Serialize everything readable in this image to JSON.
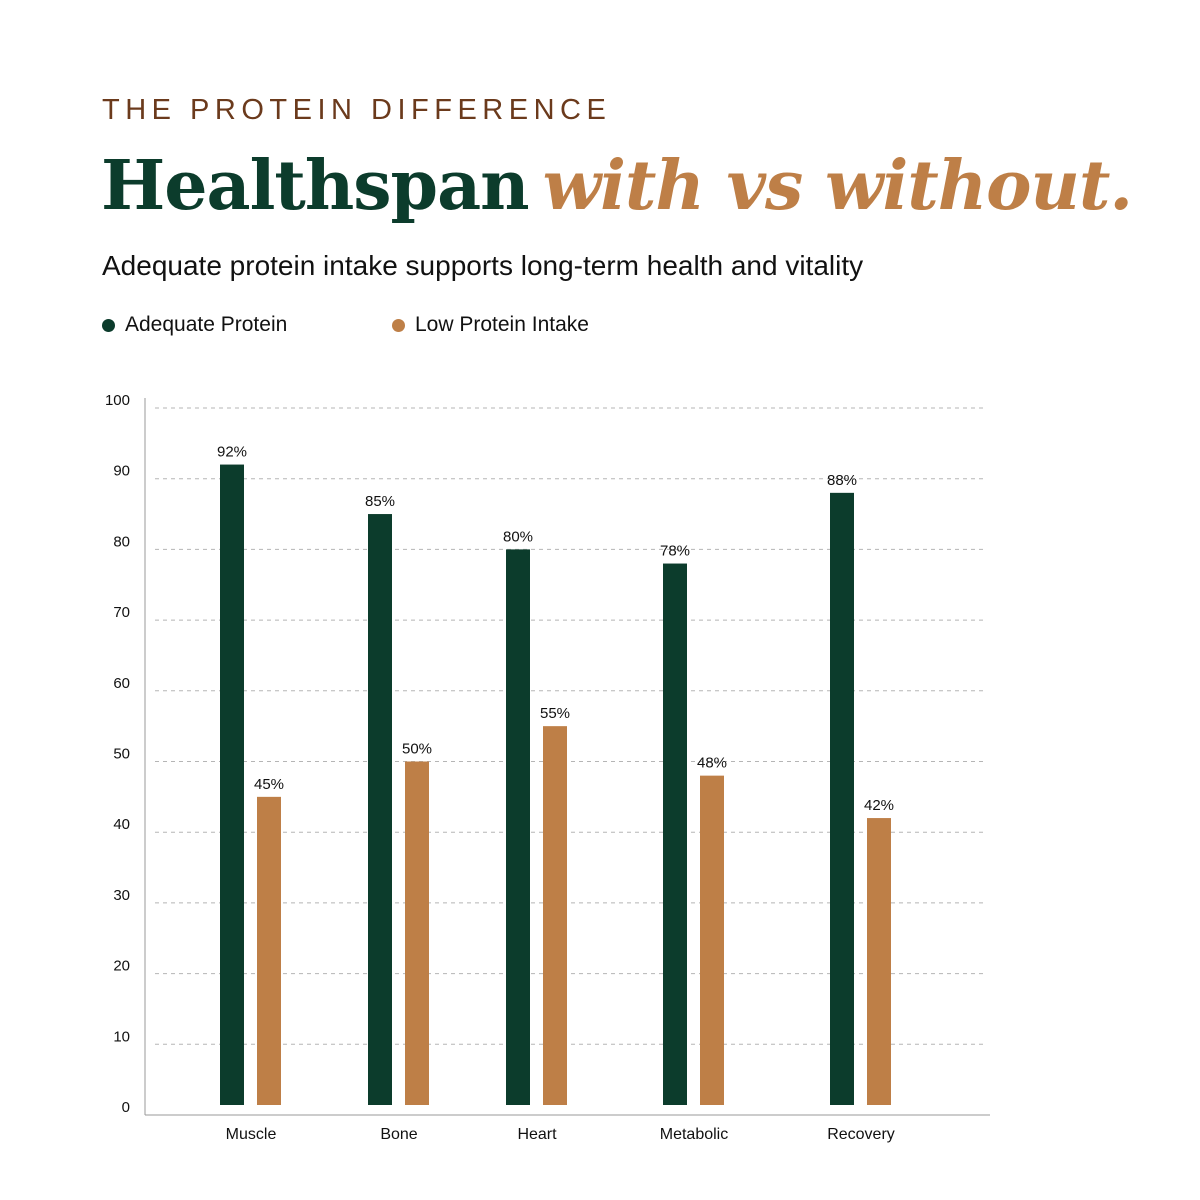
{
  "header": {
    "eyebrow": "THE PROTEIN DIFFERENCE",
    "headline_main": "Healthspan",
    "headline_accent": "with vs without.",
    "subtitle": "Adequate protein intake supports long-term health and vitality"
  },
  "colors": {
    "adequate": "#0c3c2c",
    "low": "#be7f47",
    "eyebrow": "#6b3a1c"
  },
  "chart_data": {
    "type": "bar",
    "categories": [
      "Muscle",
      "Bone",
      "Heart",
      "Metabolic",
      "Recovery"
    ],
    "series": [
      {
        "name": "Adequate Protein",
        "values": [
          92,
          85,
          80,
          78,
          88
        ],
        "labels": [
          "92%",
          "85%",
          "80%",
          "78%",
          "88%"
        ]
      },
      {
        "name": "Low Protein Intake",
        "values": [
          45,
          50,
          55,
          48,
          42
        ],
        "labels": [
          "45%",
          "50%",
          "55%",
          "48%",
          "42%"
        ]
      }
    ],
    "ylim": [
      0,
      100
    ],
    "yticks": [
      "0",
      "10",
      "20",
      "30",
      "40",
      "50",
      "60",
      "70",
      "80",
      "90",
      "100"
    ],
    "grid": true,
    "legend_position": "top-left"
  }
}
